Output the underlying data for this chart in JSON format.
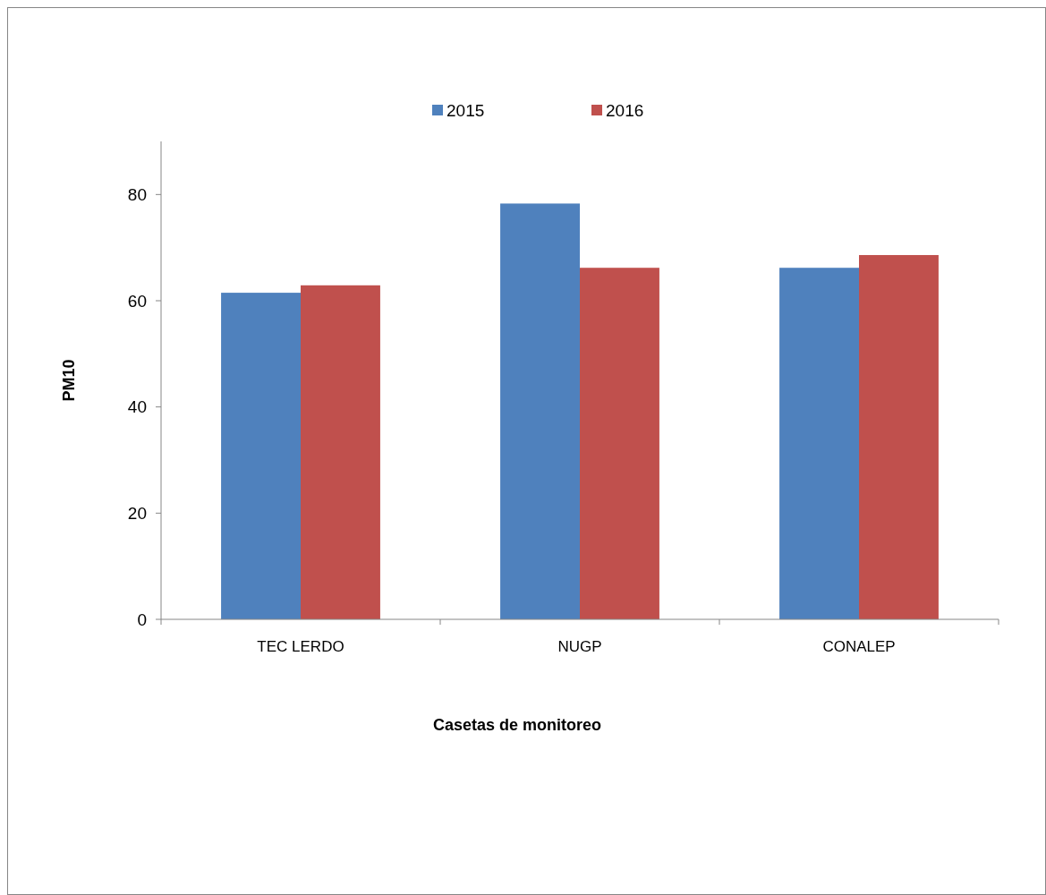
{
  "chart_data": {
    "type": "bar",
    "xlabel": "Casetas de monitoreo",
    "ylabel": "PM10",
    "categories": [
      "TEC LERDO",
      "NUGP",
      "CONALEP"
    ],
    "series": [
      {
        "name": "2015",
        "color": "#4f81bd",
        "values": [
          61.5,
          78.3,
          66.2
        ]
      },
      {
        "name": "2016",
        "color": "#c0504d",
        "values": [
          62.9,
          66.2,
          68.6
        ]
      }
    ],
    "ylim": [
      0,
      90
    ],
    "yticks": [
      0,
      20,
      40,
      60,
      80
    ],
    "grid": false,
    "legend": "top"
  }
}
